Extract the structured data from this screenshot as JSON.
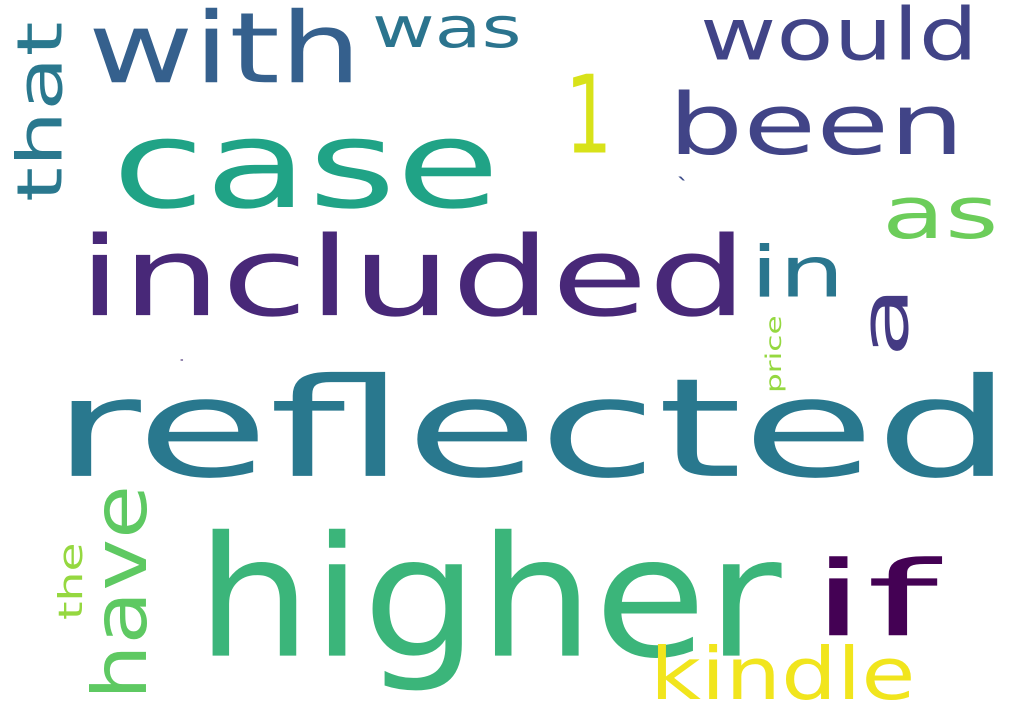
{
  "words": [
    {
      "text": "reflected",
      "color": "#29788e"
    },
    {
      "text": "included",
      "color": "#482878"
    },
    {
      "text": "higher",
      "color": "#3bb57a"
    },
    {
      "text": "case",
      "color": "#20a386"
    },
    {
      "text": "been",
      "color": "#414487"
    },
    {
      "text": "with",
      "color": "#35608d"
    },
    {
      "text": "would",
      "color": "#414487"
    },
    {
      "text": "was",
      "color": "#2b748e"
    },
    {
      "text": "1",
      "color": "#d8e219"
    },
    {
      "text": "as",
      "color": "#6ccd5a"
    },
    {
      "text": "in",
      "color": "#2a768e"
    },
    {
      "text": "a",
      "color": "#443a83"
    },
    {
      "text": "that",
      "color": "#2a788e"
    },
    {
      "text": "if",
      "color": "#440154"
    },
    {
      "text": "kindle",
      "color": "#f1e51d"
    },
    {
      "text": "have",
      "color": "#5ec962"
    },
    {
      "text": "the",
      "color": "#95d840"
    },
    {
      "text": "price",
      "color": "#95d840"
    },
    {
      "text": "`",
      "color": "#3e4c8a"
    },
    {
      "text": ".",
      "color": "#2d1160"
    }
  ]
}
